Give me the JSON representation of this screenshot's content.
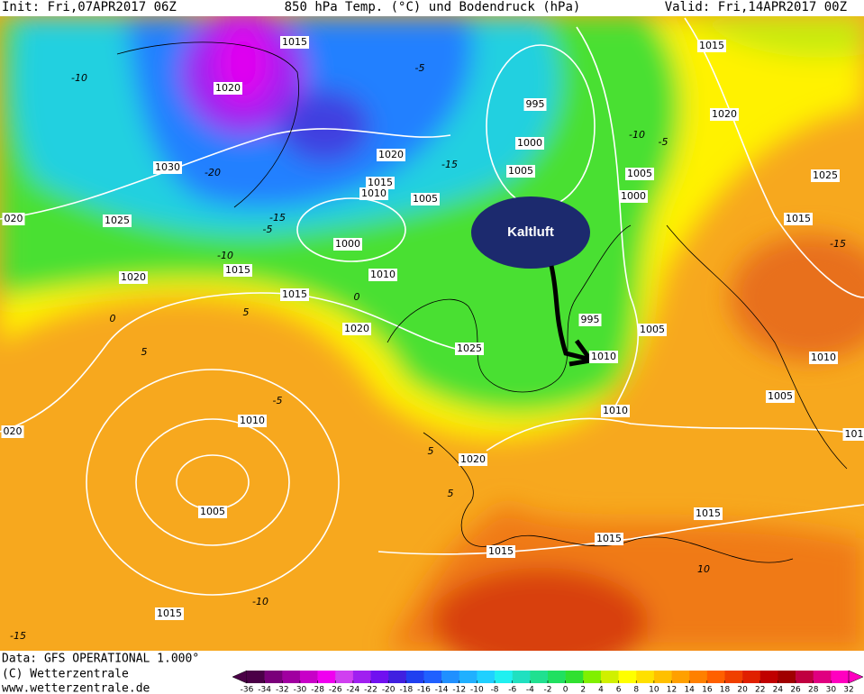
{
  "header": {
    "init": "Init: Fri,07APR2017 06Z",
    "title": "850 hPa Temp. (°C) und Bodendruck (hPa)",
    "valid": "Valid: Fri,14APR2017 00Z"
  },
  "isobar_labels": [
    "1015",
    "1020",
    "1030",
    "1025",
    "020",
    "1020",
    "1015",
    "1015",
    "1010",
    "1015",
    "1020",
    "1005",
    "1000",
    "1010",
    "995",
    "1000",
    "1005",
    "1005",
    "1000",
    "1015",
    "1020",
    "1025",
    "1015",
    "1020",
    "1025",
    "995",
    "1005",
    "1010",
    "1010",
    "1010",
    "1005",
    "101",
    "020",
    "1010",
    "1005",
    "1020",
    "1015",
    "1015",
    "1015",
    "1015"
  ],
  "temperature_labels": [
    "-10",
    "-5",
    "-20",
    "-15",
    "-10",
    "-5",
    "0",
    "0",
    "5",
    "5",
    "-5",
    "-10",
    "-5",
    "-15",
    "-15",
    "5",
    "5",
    "10",
    "-10",
    "-15"
  ],
  "annotation": "Kaltluft",
  "footer": {
    "data": "Data: GFS OPERATIONAL 1.000°",
    "copyright": "(C) Wetterzentrale",
    "url": "www.wetterzentrale.de"
  },
  "color_scale": {
    "ticks": [
      -36,
      -34,
      -32,
      -30,
      -28,
      -26,
      -24,
      -22,
      -20,
      -18,
      -16,
      -14,
      -12,
      -10,
      -8,
      -6,
      -4,
      -2,
      0,
      2,
      4,
      6,
      8,
      10,
      12,
      14,
      16,
      18,
      20,
      22,
      24,
      26,
      28,
      30,
      32
    ],
    "colors": [
      "#4b0047",
      "#7a007a",
      "#a000a0",
      "#c800c8",
      "#f000f0",
      "#d040f0",
      "#a020f0",
      "#7010f0",
      "#4020e0",
      "#2040f0",
      "#2060ff",
      "#2090ff",
      "#20b0ff",
      "#20d0ff",
      "#20f0f0",
      "#20e0c0",
      "#20e090",
      "#20e060",
      "#30e030",
      "#80f000",
      "#d0f000",
      "#ffff00",
      "#ffe000",
      "#ffc000",
      "#ffa000",
      "#ff8000",
      "#ff6000",
      "#f04000",
      "#e02000",
      "#c00000",
      "#a00000",
      "#c00040",
      "#e00080",
      "#ff00c0"
    ]
  }
}
